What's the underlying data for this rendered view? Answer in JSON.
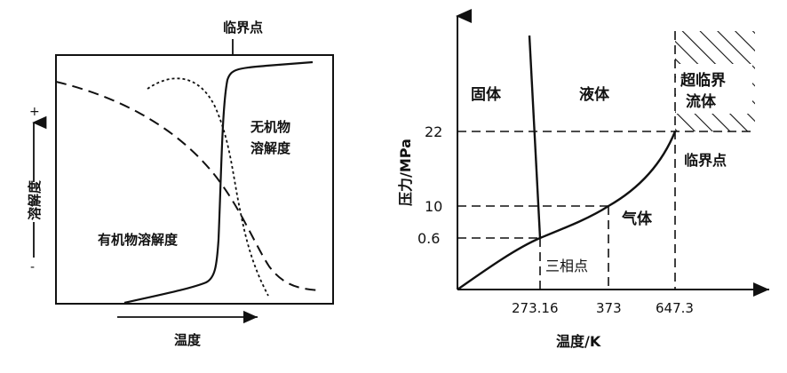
{
  "left_panel": {
    "critical_point_label": "临界点",
    "inorganic_label_line1": "无机物",
    "inorganic_label_line2": "溶解度",
    "organic_label": "有机物溶解度",
    "y_axis_label": "溶解度",
    "y_plus": "+",
    "y_minus": "-",
    "x_axis_label": "温度"
  },
  "right_panel": {
    "solid_label": "固体",
    "liquid_label": "液体",
    "supercritical_line1": "超临界",
    "supercritical_line2": "流体",
    "critical_point_label": "临界点",
    "triple_point_label": "三相点",
    "gas_label": "气体",
    "y_axis_label": "压力/MPa",
    "x_axis_label": "温度/K",
    "y_ticks": [
      "22",
      "10",
      "0.6"
    ],
    "x_ticks": [
      "273.16",
      "373",
      "647.3"
    ]
  }
}
